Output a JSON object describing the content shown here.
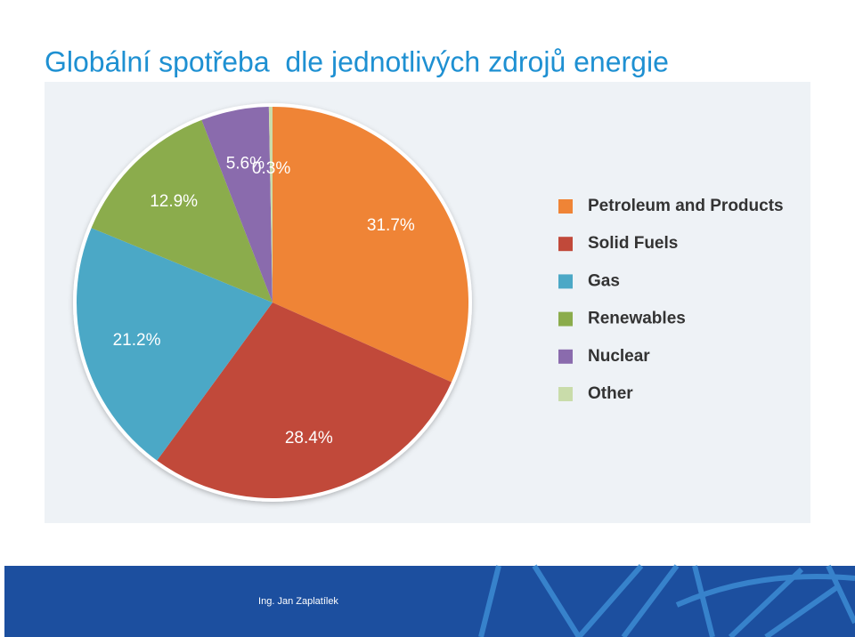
{
  "chart_data": {
    "type": "pie",
    "title": "Globální spotřeba  dle jednotlivých zdrojů energie",
    "categories": [
      "Petroleum and Products",
      "Solid Fuels",
      "Gas",
      "Renewables",
      "Nuclear",
      "Other"
    ],
    "values": [
      31.7,
      28.4,
      21.2,
      12.9,
      5.6,
      0.3
    ],
    "value_labels": [
      "31.7%",
      "28.4%",
      "21.2%",
      "12.9%",
      "5.6%",
      "0.3%"
    ],
    "colors": [
      "#ef8436",
      "#c1493a",
      "#4ba8c6",
      "#8bac4c",
      "#8a6bad",
      "#c9dcaa"
    ],
    "legend": "right"
  },
  "footer": {
    "author": "Ing. Jan Zaplatílek"
  }
}
